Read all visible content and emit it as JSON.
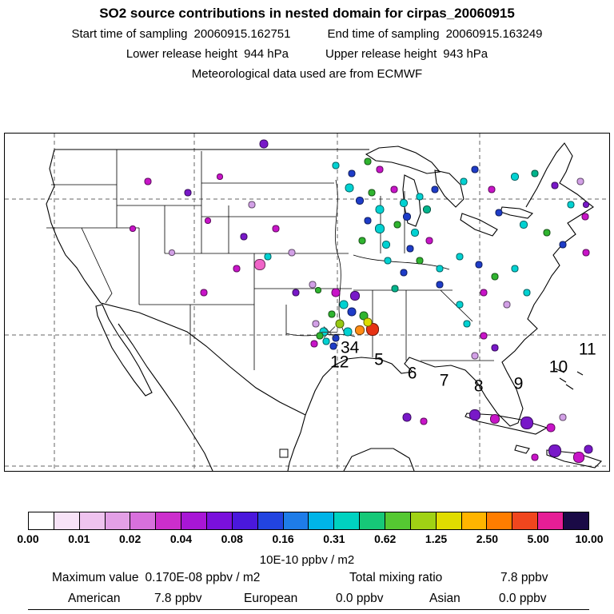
{
  "header": {
    "title": "SO2 source contributions in nested domain for cirpas_20060915",
    "start_label": "Start time of sampling",
    "start_value": "20060915.162751",
    "end_label": "End time of sampling",
    "end_value": "20060915.163249",
    "lower_label": "Lower release height",
    "lower_value": "944 hPa",
    "upper_label": "Upper release height",
    "upper_value": "943 hPa",
    "met_line": "Meteorological data used are from ECMWF"
  },
  "chart_data": {
    "type": "heatmap",
    "title": "SO2 source contributions in nested domain for cirpas_20060915",
    "region": "Continental United States, Gulf of Mexico, Caribbean",
    "legend_position": "bottom",
    "grid": "dashed lat/lon lines",
    "colorbar": {
      "units_label": "10E-10 ppbv / m2",
      "tick_labels": [
        "0.00",
        "0.01",
        "0.02",
        "0.04",
        "0.08",
        "0.16",
        "0.31",
        "0.62",
        "1.25",
        "2.50",
        "5.00",
        "10.00"
      ],
      "segment_colors": [
        "#FFFFFF",
        "#F7E3F7",
        "#EFC3EF",
        "#E3A0E6",
        "#D870DC",
        "#CC2ECC",
        "#A816D6",
        "#7A10DC",
        "#4A18DC",
        "#2244E0",
        "#1E7CE8",
        "#00B4E8",
        "#00D2C0",
        "#16C878",
        "#55C832",
        "#A0D214",
        "#E0DC00",
        "#FFB400",
        "#FF7D00",
        "#F0461E",
        "#E61E96",
        "#1A0A46"
      ]
    },
    "source_markers": [
      {
        "label": "34",
        "x": 57.1,
        "y": 63.5
      },
      {
        "label": "12",
        "x": 55.4,
        "y": 67.8
      },
      {
        "label": "5",
        "x": 61.9,
        "y": 67.1
      },
      {
        "label": "6",
        "x": 67.4,
        "y": 71.1
      },
      {
        "label": "7",
        "x": 72.7,
        "y": 73.2
      },
      {
        "label": "8",
        "x": 78.4,
        "y": 74.8
      },
      {
        "label": "9",
        "x": 85.0,
        "y": 74.1
      },
      {
        "label": "10",
        "x": 91.6,
        "y": 69.2
      },
      {
        "label": "11",
        "x": 96.4,
        "y": 64.0
      }
    ],
    "receptor_marker": {
      "symbol": "asterisk",
      "x": 53.7,
      "y": 59.5
    },
    "domain_marker": {
      "symbol": "open-square",
      "x": 46.2,
      "y": 94.8
    },
    "plumes": [
      [
        57,
        16,
        "#00D2D2",
        9
      ],
      [
        58.7,
        20,
        "#1E3CC8",
        8
      ],
      [
        60.7,
        17.6,
        "#2FB42F",
        7
      ],
      [
        62,
        22.4,
        "#00D2D2",
        9
      ],
      [
        64.4,
        16.5,
        "#C814C8",
        7
      ],
      [
        66,
        20.7,
        "#00D2D2",
        8
      ],
      [
        60,
        25.9,
        "#1E3CC8",
        7
      ],
      [
        62,
        28.2,
        "#00D2D2",
        10
      ],
      [
        64.9,
        27,
        "#2FB42F",
        7
      ],
      [
        66.6,
        24.7,
        "#1E3CC8",
        8
      ],
      [
        68.6,
        18.8,
        "#00D2D2",
        7
      ],
      [
        69.9,
        22.4,
        "#00B48C",
        8
      ],
      [
        67.9,
        29.4,
        "#00D2D2",
        8
      ],
      [
        71.2,
        16.5,
        "#1E3CC8",
        7
      ],
      [
        59.1,
        31.8,
        "#2FB42F",
        7
      ],
      [
        63.1,
        32.9,
        "#00D2D2",
        8
      ],
      [
        67,
        34.1,
        "#1E3CC8",
        7
      ],
      [
        70.2,
        31.8,
        "#C814C8",
        7
      ],
      [
        75.9,
        14.1,
        "#00D2D2",
        7
      ],
      [
        77.8,
        10.6,
        "#1E3CC8",
        7
      ],
      [
        80.5,
        16.5,
        "#C814C8",
        7
      ],
      [
        84.4,
        12.9,
        "#00D2D2",
        8
      ],
      [
        87.7,
        11.8,
        "#00B48C",
        7
      ],
      [
        91,
        15.3,
        "#7818C8",
        7
      ],
      [
        93.7,
        21.2,
        "#00D2D2",
        7
      ],
      [
        96,
        24.7,
        "#C814C8",
        7
      ],
      [
        81.8,
        23.5,
        "#1E3CC8",
        7
      ],
      [
        85.8,
        27.1,
        "#00D2D2",
        8
      ],
      [
        89.7,
        29.4,
        "#2FB42F",
        7
      ],
      [
        92.3,
        32.9,
        "#1E3CC8",
        7
      ],
      [
        95.3,
        14.1,
        "#D2A0E6",
        7
      ],
      [
        96.2,
        21.2,
        "#7818C8",
        6
      ],
      [
        75.2,
        36.5,
        "#00D2D2",
        7
      ],
      [
        78.5,
        38.8,
        "#1E3CC8",
        7
      ],
      [
        81.1,
        42.4,
        "#2FB42F",
        7
      ],
      [
        84.4,
        40,
        "#00D2D2",
        7
      ],
      [
        79.2,
        47.1,
        "#C814C8",
        7
      ],
      [
        75.2,
        50.6,
        "#00D2D2",
        7
      ],
      [
        71.9,
        44.7,
        "#1E3CC8",
        7
      ],
      [
        83.1,
        50.6,
        "#D2A0E6",
        7
      ],
      [
        86.4,
        47.1,
        "#00D2D2",
        7
      ],
      [
        63.3,
        37.6,
        "#00D2D2",
        7
      ],
      [
        66,
        41.2,
        "#1E3CC8",
        7
      ],
      [
        68.6,
        37.6,
        "#2FB42F",
        7
      ],
      [
        71.9,
        40,
        "#00D2D2",
        7
      ],
      [
        64.6,
        45.9,
        "#00B48C",
        7
      ],
      [
        54.7,
        47.1,
        "#C814C8",
        9
      ],
      [
        56.1,
        50.6,
        "#00D2D2",
        9
      ],
      [
        58,
        48.2,
        "#7818C8",
        10
      ],
      [
        57.4,
        52.9,
        "#1E3CC8",
        9
      ],
      [
        59.4,
        54.1,
        "#2FB42F",
        9
      ],
      [
        55.4,
        56.5,
        "#96C814",
        9
      ],
      [
        56.7,
        58.8,
        "#00D2D2",
        9
      ],
      [
        58.7,
        58.4,
        "#FF8C14",
        10
      ],
      [
        60.9,
        58.1,
        "#E63214",
        14
      ],
      [
        60,
        56,
        "#DCDC00",
        9
      ],
      [
        54.1,
        53.6,
        "#2FB42F",
        7
      ],
      [
        52.8,
        58.8,
        "#00D2D2",
        9
      ],
      [
        54.7,
        60.7,
        "#1E3CC8",
        7
      ],
      [
        51.5,
        56.5,
        "#D2A0E6",
        7
      ],
      [
        50.9,
        44.7,
        "#D2A0E6",
        7
      ],
      [
        51.9,
        46.5,
        "#2FB42F",
        6
      ],
      [
        52.1,
        60,
        "#2FB42F",
        7
      ],
      [
        53.2,
        61.6,
        "#00D2D2",
        7
      ],
      [
        54.4,
        63.1,
        "#1E3CC8",
        7
      ],
      [
        51.2,
        62.4,
        "#C814C8",
        7
      ],
      [
        23.7,
        14.1,
        "#C814C8",
        7
      ],
      [
        30.3,
        17.6,
        "#7818C8",
        7
      ],
      [
        35.6,
        12.9,
        "#C814C8",
        6
      ],
      [
        40.9,
        21.2,
        "#D2A0E6",
        7
      ],
      [
        33.6,
        25.9,
        "#C814C8",
        6
      ],
      [
        39.6,
        30.6,
        "#7818C8",
        7
      ],
      [
        44.9,
        28.2,
        "#C814C8",
        7
      ],
      [
        47.5,
        35.3,
        "#D2A0E6",
        7
      ],
      [
        38.3,
        40,
        "#C814C8",
        7
      ],
      [
        42.2,
        38.8,
        "#F064C8",
        12
      ],
      [
        43.5,
        36.5,
        "#00D2D2",
        7
      ],
      [
        48.2,
        47.1,
        "#7818C8",
        7
      ],
      [
        33,
        47.1,
        "#C814C8",
        7
      ],
      [
        27.7,
        35.3,
        "#D2A0E6",
        6
      ],
      [
        21.1,
        28.2,
        "#C814C8",
        6
      ],
      [
        42.9,
        3.1,
        "#7818C8",
        9
      ],
      [
        54.7,
        9.4,
        "#00D2D2",
        7
      ],
      [
        57.4,
        11.8,
        "#1E3CC8",
        7
      ],
      [
        60,
        8.2,
        "#2FB42F",
        7
      ],
      [
        62,
        10.6,
        "#C814C8",
        7
      ],
      [
        76.5,
        56.5,
        "#00D2D2",
        7
      ],
      [
        79.2,
        60,
        "#C814C8",
        7
      ],
      [
        81.1,
        63.5,
        "#7818C8",
        7
      ],
      [
        77.8,
        65.9,
        "#D2A0E6",
        7
      ],
      [
        96.2,
        35.3,
        "#C814C8",
        7
      ],
      [
        77.8,
        83.5,
        "#7818C8",
        12
      ],
      [
        81.1,
        84.7,
        "#C814C8",
        10
      ],
      [
        86.4,
        85.9,
        "#7818C8",
        14
      ],
      [
        90.4,
        87.1,
        "#C814C8",
        9
      ],
      [
        92.3,
        84.2,
        "#D2A0E6",
        7
      ],
      [
        91,
        94.1,
        "#7818C8",
        14
      ],
      [
        95,
        96,
        "#C814C8",
        12
      ],
      [
        96.6,
        93.6,
        "#7818C8",
        9
      ],
      [
        87.7,
        96,
        "#C814C8",
        7
      ],
      [
        66.6,
        84.2,
        "#7818C8",
        9
      ],
      [
        69.3,
        85.2,
        "#C814C8",
        7
      ]
    ]
  },
  "stats": {
    "max_label": "Maximum value",
    "max_value": "0.170E-08 ppbv / m2",
    "total_label": "Total mixing ratio",
    "total_value": "7.8 ppbv",
    "regions": [
      {
        "name": "American",
        "value": "7.8 ppbv"
      },
      {
        "name": "European",
        "value": "0.0 ppbv"
      },
      {
        "name": "Asian",
        "value": "0.0 ppbv"
      }
    ]
  }
}
